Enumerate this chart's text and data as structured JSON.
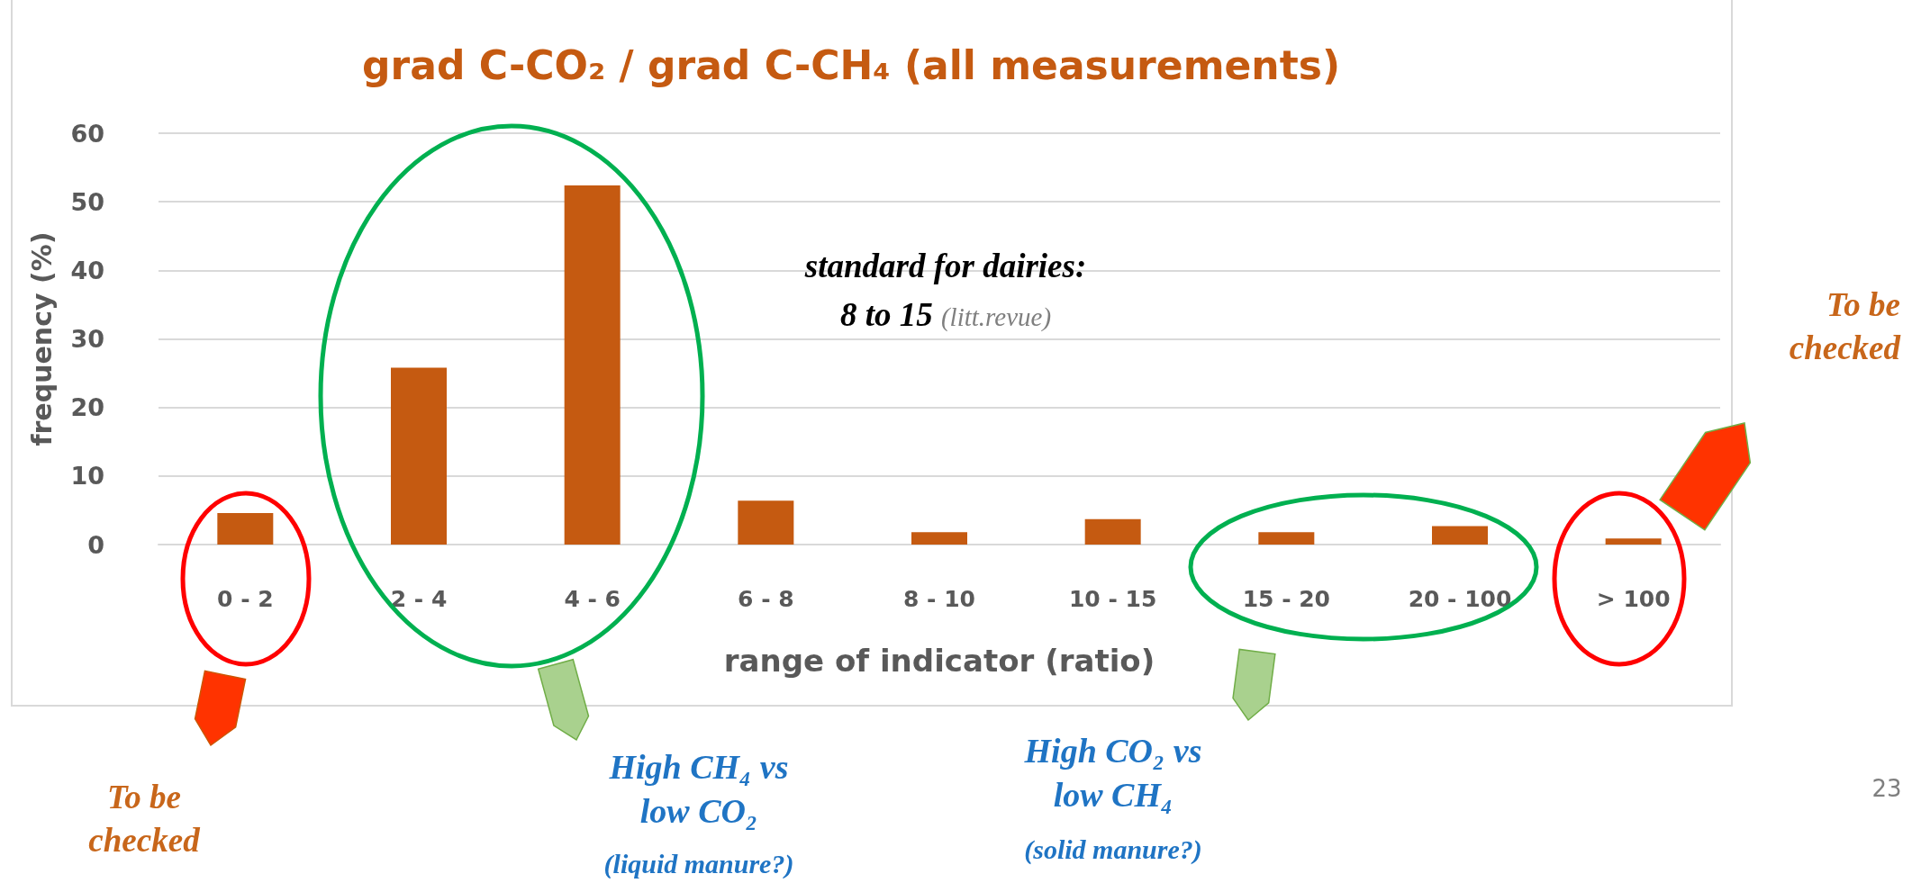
{
  "chart_data": {
    "type": "bar",
    "title": "grad C-CO₂ / grad C-CH₄ (all measurements)",
    "xlabel": "range of indicator (ratio)",
    "ylabel": "frequency (%)",
    "categories": [
      "0 - 2",
      "2 - 4",
      "4 - 6",
      "6 - 8",
      "8 - 10",
      "10 - 15",
      "15 - 20",
      "20 - 100",
      "> 100"
    ],
    "values": [
      4.6,
      25.8,
      52.4,
      6.4,
      1.8,
      3.7,
      1.8,
      2.7,
      0.9
    ],
    "color": "#c55a11",
    "ylim": [
      0,
      60
    ],
    "yticks": [
      0,
      10,
      20,
      30,
      40,
      50,
      60
    ],
    "grid": "y",
    "annotations": [
      "standard for dairies:",
      "8 to 15",
      "(litt.revue)",
      "To be checked",
      "To be checked",
      "High CH₄ vs low CO₂",
      "(liquid manure?)",
      "High CO₂ vs low CH₄",
      "(solid  manure?)",
      "23"
    ]
  }
}
